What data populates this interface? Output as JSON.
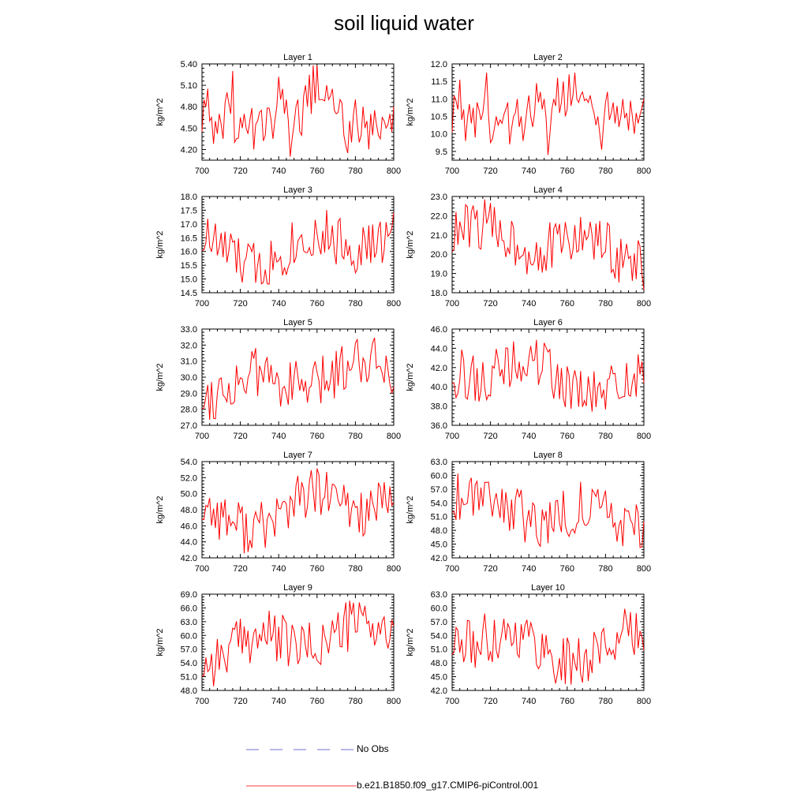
{
  "title": "soil liquid water",
  "legend": [
    {
      "label": "No Obs",
      "color": "#6f6fd0",
      "style": "dashed"
    },
    {
      "label": "b.e21.B1850.f09_g17.CMIP6-piControl.001",
      "color": "#ff0000",
      "style": "solid"
    }
  ],
  "chart_data": [
    {
      "type": "line",
      "title": "Layer 1",
      "ylabel": "kg/m^2",
      "xlim": [
        700,
        800
      ],
      "xticks": [
        700,
        720,
        740,
        760,
        780,
        800
      ],
      "ylim": [
        4.05,
        5.4
      ],
      "yticks": [
        4.2,
        4.5,
        4.8,
        5.1,
        5.4
      ],
      "ytick_labels": [
        "4.20",
        "4.50",
        "4.80",
        "5.10",
        "5.40"
      ],
      "series_color": "#ff0000",
      "seed": 11,
      "series": [
        {
          "name": "b.e21.B1850.f09_g17.CMIP6-piControl.001",
          "x_start": 700,
          "x_step": 1,
          "values": [
            4.45,
            4.9,
            4.8,
            5.05,
            4.6,
            4.65,
            4.28,
            4.6,
            4.42,
            4.7,
            4.55,
            4.35,
            4.85,
            5.0,
            4.85,
            4.7,
            5.3,
            4.3,
            4.35,
            4.36,
            4.65,
            4.5,
            4.7,
            4.5,
            4.42,
            4.62,
            4.78,
            4.2,
            4.55,
            4.6,
            4.72,
            4.75,
            4.32,
            4.4,
            4.78,
            4.78,
            4.62,
            4.35,
            4.6,
            4.8,
            5.22,
            4.9,
            5.05,
            4.7,
            4.9,
            4.6,
            4.1,
            4.35,
            4.55,
            4.8,
            4.9,
            4.45,
            4.4,
            4.95,
            5.1,
            4.8,
            5.25,
            4.7,
            5.38,
            4.85,
            5.38,
            4.9,
            4.9,
            4.9,
            4.88,
            5.1,
            4.9,
            4.95,
            5.05,
            4.75,
            4.7,
            4.72,
            4.9,
            4.85,
            4.4,
            4.25,
            4.15,
            4.6,
            4.3,
            4.7,
            4.9,
            4.55,
            4.3,
            4.4,
            4.8,
            4.5,
            4.6,
            4.2,
            4.7,
            4.4,
            4.75,
            4.55,
            4.4,
            4.35,
            4.65,
            4.6,
            4.5,
            4.55,
            4.7,
            4.45,
            4.8
          ]
        }
      ]
    },
    {
      "type": "line",
      "title": "Layer 2",
      "ylabel": "kg/m^2",
      "xlim": [
        700,
        800
      ],
      "xticks": [
        700,
        720,
        740,
        760,
        780,
        800
      ],
      "ylim": [
        9.25,
        12.0
      ],
      "yticks": [
        9.5,
        10.0,
        10.5,
        11.0,
        11.5,
        12.0
      ],
      "ytick_labels": [
        "9.5",
        "10.0",
        "10.5",
        "11.0",
        "11.5",
        "12.0"
      ],
      "series_color": "#ff0000",
      "seed": 22,
      "series": [
        {
          "name": "b.e21.B1850.f09_g17.CMIP6-piControl.001",
          "x_start": 700,
          "x_step": 1,
          "values": [
            10.05,
            11.1,
            10.95,
            10.7,
            11.55,
            10.4,
            10.7,
            9.8,
            10.45,
            10.85,
            10.3,
            10.75,
            9.9,
            10.9,
            10.7,
            10.4,
            10.6,
            11.1,
            11.75,
            10.5,
            9.75,
            9.85,
            10.15,
            10.5,
            10.25,
            10.4,
            10.3,
            10.55,
            10.7,
            10.9,
            9.7,
            10.15,
            10.5,
            10.6,
            11.0,
            10.2,
            10.5,
            9.8,
            10.2,
            10.7,
            11.1,
            10.5,
            10.2,
            10.6,
            11.45,
            10.9,
            11.2,
            10.7,
            11.0,
            10.45,
            9.4,
            10.0,
            10.7,
            11.0,
            10.8,
            11.6,
            10.6,
            10.9,
            11.5,
            10.5,
            10.7,
            11.7,
            10.8,
            11.1,
            11.75,
            11.0,
            10.9,
            11.1,
            11.2,
            10.95,
            11.0,
            10.9,
            11.1,
            10.8,
            10.6,
            10.25,
            10.5,
            10.0,
            9.55,
            10.3,
            10.9,
            11.2,
            10.4,
            10.6,
            10.9,
            10.3,
            10.8,
            10.2,
            10.5,
            11.0,
            10.45,
            10.6,
            10.1,
            10.95,
            10.5,
            10.0,
            10.6,
            10.3,
            10.55,
            10.75,
            11.0
          ]
        }
      ]
    },
    {
      "type": "line",
      "title": "Layer 3",
      "ylabel": "kg/m^2",
      "xlim": [
        700,
        800
      ],
      "xticks": [
        700,
        720,
        740,
        760,
        780,
        800
      ],
      "ylim": [
        14.5,
        18.0
      ],
      "yticks": [
        14.5,
        15.0,
        15.5,
        16.0,
        16.5,
        17.0,
        17.5,
        18.0
      ],
      "ytick_labels": [
        "14.5",
        "15.0",
        "15.5",
        "16.0",
        "16.5",
        "17.0",
        "17.5",
        "18.0"
      ],
      "series_color": "#ff0000",
      "seed": 33
    },
    {
      "type": "line",
      "title": "Layer 4",
      "ylabel": "kg/m^2",
      "xlim": [
        700,
        800
      ],
      "xticks": [
        700,
        720,
        740,
        760,
        780,
        800
      ],
      "ylim": [
        18.0,
        23.0
      ],
      "yticks": [
        18.0,
        19.0,
        20.0,
        21.0,
        22.0,
        23.0
      ],
      "ytick_labels": [
        "18.0",
        "19.0",
        "20.0",
        "21.0",
        "22.0",
        "23.0"
      ],
      "series_color": "#ff0000",
      "seed": 44
    },
    {
      "type": "line",
      "title": "Layer 5",
      "ylabel": "kg/m^2",
      "xlim": [
        700,
        800
      ],
      "xticks": [
        700,
        720,
        740,
        760,
        780,
        800
      ],
      "ylim": [
        27.0,
        33.0
      ],
      "yticks": [
        27,
        28,
        29,
        30,
        31,
        32,
        33
      ],
      "ytick_labels": [
        "27.0",
        "28.0",
        "29.0",
        "30.0",
        "31.0",
        "32.0",
        "33.0"
      ],
      "series_color": "#ff0000",
      "seed": 55
    },
    {
      "type": "line",
      "title": "Layer 6",
      "ylabel": "kg/m^2",
      "xlim": [
        700,
        800
      ],
      "xticks": [
        700,
        720,
        740,
        760,
        780,
        800
      ],
      "ylim": [
        36.0,
        46.0
      ],
      "yticks": [
        36,
        38,
        40,
        42,
        44,
        46
      ],
      "ytick_labels": [
        "36.0",
        "38.0",
        "40.0",
        "42.0",
        "44.0",
        "46.0"
      ],
      "series_color": "#ff0000",
      "seed": 66
    },
    {
      "type": "line",
      "title": "Layer 7",
      "ylabel": "kg/m^2",
      "xlim": [
        700,
        800
      ],
      "xticks": [
        700,
        720,
        740,
        760,
        780,
        800
      ],
      "ylim": [
        42.0,
        54.0
      ],
      "yticks": [
        42,
        44,
        46,
        48,
        50,
        52,
        54
      ],
      "ytick_labels": [
        "42.0",
        "44.0",
        "46.0",
        "48.0",
        "50.0",
        "52.0",
        "54.0"
      ],
      "series_color": "#ff0000",
      "seed": 77
    },
    {
      "type": "line",
      "title": "Layer 8",
      "ylabel": "kg/m^2",
      "xlim": [
        700,
        800
      ],
      "xticks": [
        700,
        720,
        740,
        760,
        780,
        800
      ],
      "ylim": [
        42.0,
        63.0
      ],
      "yticks": [
        42,
        45,
        48,
        51,
        54,
        57,
        60,
        63
      ],
      "ytick_labels": [
        "42.0",
        "45.0",
        "48.0",
        "51.0",
        "54.0",
        "57.0",
        "60.0",
        "63.0"
      ],
      "series_color": "#ff0000",
      "seed": 88
    },
    {
      "type": "line",
      "title": "Layer 9",
      "ylabel": "kg/m^2",
      "xlim": [
        700,
        800
      ],
      "xticks": [
        700,
        720,
        740,
        760,
        780,
        800
      ],
      "ylim": [
        48.0,
        69.0
      ],
      "yticks": [
        48,
        51,
        54,
        57,
        60,
        63,
        66,
        69
      ],
      "ytick_labels": [
        "48.0",
        "51.0",
        "54.0",
        "57.0",
        "60.0",
        "63.0",
        "66.0",
        "69.0"
      ],
      "series_color": "#ff0000",
      "seed": 99
    },
    {
      "type": "line",
      "title": "Layer 10",
      "ylabel": "kg/m^2",
      "xlim": [
        700,
        800
      ],
      "xticks": [
        700,
        720,
        740,
        760,
        780,
        800
      ],
      "ylim": [
        42.0,
        63.0
      ],
      "yticks": [
        42,
        45,
        48,
        51,
        54,
        57,
        60,
        63
      ],
      "ytick_labels": [
        "42.0",
        "45.0",
        "48.0",
        "51.0",
        "54.0",
        "57.0",
        "60.0",
        "63.0"
      ],
      "series_color": "#ff0000",
      "seed": 111
    }
  ]
}
